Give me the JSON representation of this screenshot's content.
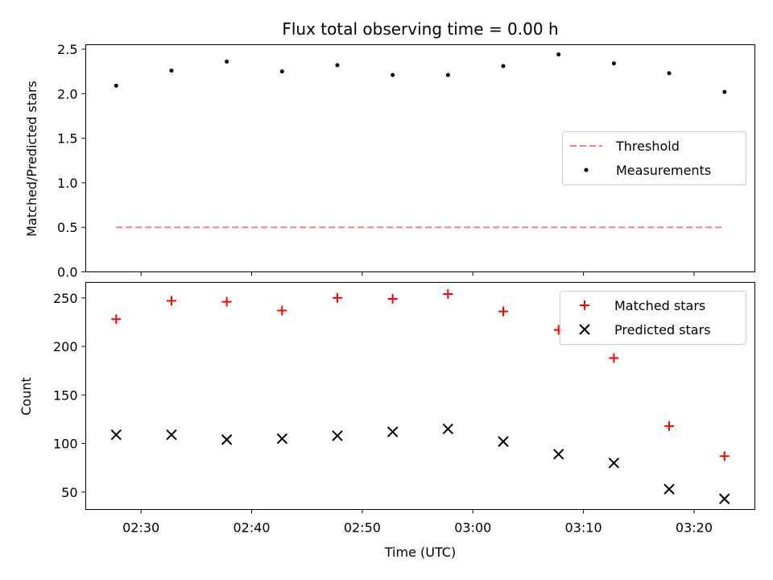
{
  "chart_data": [
    {
      "type": "scatter",
      "title": "Flux total observing time = 0.00 h",
      "xlabel": "",
      "ylabel": "Matched/Predicted stars",
      "ylim": [
        0,
        2.55
      ],
      "yticks": [
        "0.0",
        "0.5",
        "1.0",
        "1.5",
        "2.0",
        "2.5"
      ],
      "ytick_values": [
        0,
        0.5,
        1.0,
        1.5,
        2.0,
        2.5
      ],
      "legend_position": "center-right",
      "x": [
        "02:27:45",
        "02:32:45",
        "02:37:45",
        "02:42:45",
        "02:47:45",
        "02:52:45",
        "02:57:45",
        "03:02:45",
        "03:07:45",
        "03:12:45",
        "03:17:45",
        "03:22:45"
      ],
      "series": [
        {
          "name": "Threshold",
          "kind": "line",
          "color": "#ff7f7f",
          "x": [
            "02:27:45",
            "03:22:45"
          ],
          "values": [
            0.5,
            0.5
          ]
        },
        {
          "name": "Measurements",
          "kind": "dot",
          "color": "#000000",
          "values": [
            2.09,
            2.26,
            2.36,
            2.25,
            2.32,
            2.21,
            2.21,
            2.31,
            2.44,
            2.34,
            2.23,
            2.02
          ]
        }
      ]
    },
    {
      "type": "scatter",
      "title": "",
      "xlabel": "Time (UTC)",
      "ylabel": "Count",
      "ylim": [
        32,
        266
      ],
      "yticks": [
        "50",
        "100",
        "150",
        "200",
        "250"
      ],
      "ytick_values": [
        50,
        100,
        150,
        200,
        250
      ],
      "xlim": [
        "02:25:00",
        "03:25:30"
      ],
      "xticks": [
        "02:30",
        "02:40",
        "02:50",
        "03:00",
        "03:10",
        "03:20"
      ],
      "xtick_values": [
        "02:30:00",
        "02:40:00",
        "02:50:00",
        "03:00:00",
        "03:10:00",
        "03:20:00"
      ],
      "legend_position": "top-right",
      "x": [
        "02:27:45",
        "02:32:45",
        "02:37:45",
        "02:42:45",
        "02:47:45",
        "02:52:45",
        "02:57:45",
        "03:02:45",
        "03:07:45",
        "03:12:45",
        "03:17:45",
        "03:22:45"
      ],
      "series": [
        {
          "name": "Matched stars",
          "kind": "plus",
          "color": "#ff0000",
          "values": [
            228,
            247,
            246,
            237,
            250,
            249,
            254,
            236,
            217,
            188,
            118,
            87
          ]
        },
        {
          "name": "Predicted stars",
          "kind": "cross",
          "color": "#000000",
          "values": [
            109,
            109,
            104,
            105,
            108,
            112,
            115,
            102,
            89,
            80,
            53,
            43
          ]
        }
      ]
    }
  ]
}
